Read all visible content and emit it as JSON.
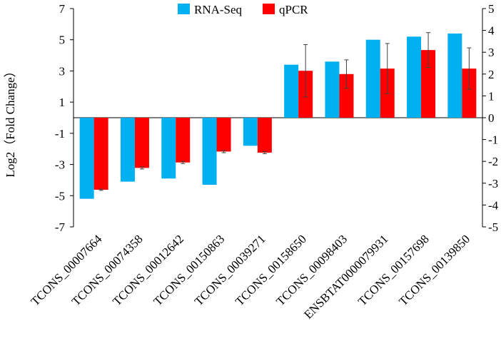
{
  "chart_data": {
    "type": "bar",
    "ylabel": "Log2（Fold Change）",
    "categories": [
      "TCONS_00007664",
      "TCONS_00074358",
      "TCONS_00012642",
      "TCONS_00150863",
      "TCONS_00039271",
      "TCONS_00158650",
      "TCONS_00098403",
      "ENSBTAT0000079931",
      "TCONS_00157698",
      "TCONS_00139850"
    ],
    "left_axis": {
      "ylim": [
        -7,
        7
      ],
      "ticks": [
        "7",
        "5",
        "3",
        "1",
        "-1",
        "-3",
        "-5",
        "-7"
      ]
    },
    "right_axis": {
      "ylim": [
        -5,
        5
      ],
      "ticks": [
        "5",
        "4",
        "3",
        "2",
        "1",
        "0",
        "-1",
        "-2",
        "-3",
        "-4",
        "-5"
      ]
    },
    "series": [
      {
        "name": "RNA-Seq",
        "axis": "left",
        "color": "#00b0f0",
        "values": [
          -5.2,
          -4.1,
          -3.9,
          -4.3,
          -1.8,
          3.4,
          3.6,
          5.0,
          5.2,
          5.4
        ]
      },
      {
        "name": "qPCR",
        "axis": "right",
        "color": "#ff0000",
        "values": [
          -3.3,
          -2.3,
          -2.05,
          -1.55,
          -1.6,
          2.15,
          2.0,
          2.25,
          3.1,
          2.25
        ],
        "errors": [
          0.03,
          0.05,
          0.05,
          0.05,
          0.05,
          1.2,
          0.65,
          1.15,
          0.8,
          0.95
        ]
      }
    ]
  }
}
